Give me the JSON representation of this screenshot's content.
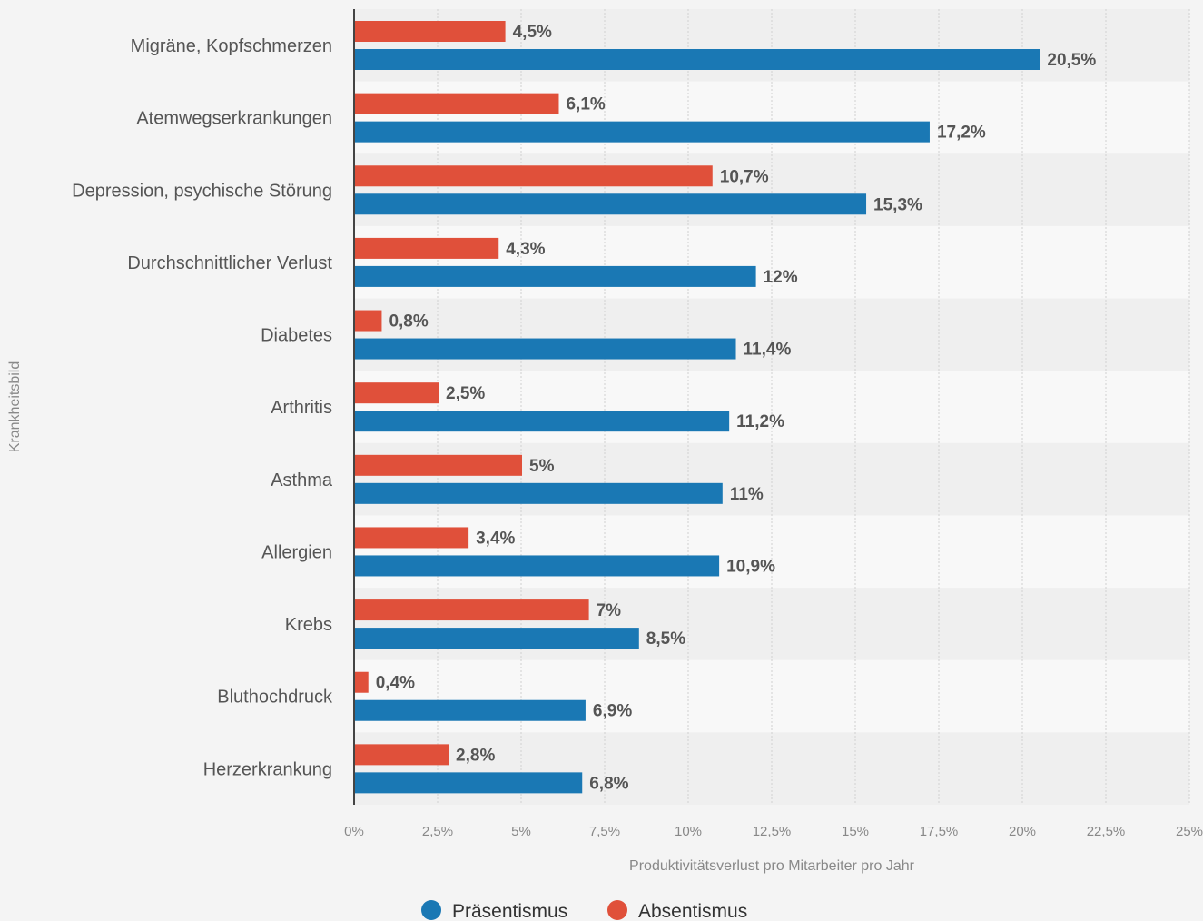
{
  "chart_data": {
    "type": "bar",
    "orientation": "horizontal",
    "categories": [
      "Migräne, Kopfschmerzen",
      "Atemwegserkrankungen",
      "Depression, psychische Störung",
      "Durchschnittlicher Verlust",
      "Diabetes",
      "Arthritis",
      "Asthma",
      "Allergien",
      "Krebs",
      "Bluthochdruck",
      "Herzerkrankung"
    ],
    "series": [
      {
        "name": "Absentismus",
        "color": "#e0503a",
        "values": [
          4.5,
          6.1,
          10.7,
          4.3,
          0.8,
          2.5,
          5,
          3.4,
          7,
          0.4,
          2.8
        ],
        "labels": [
          "4,5%",
          "6,1%",
          "10,7%",
          "4,3%",
          "0,8%",
          "2,5%",
          "5%",
          "3,4%",
          "7%",
          "0,4%",
          "2,8%"
        ]
      },
      {
        "name": "Präsentismus",
        "color": "#1a78b4",
        "values": [
          20.5,
          17.2,
          15.3,
          12,
          11.4,
          11.2,
          11,
          10.9,
          8.5,
          6.9,
          6.8
        ],
        "labels": [
          "20,5%",
          "17,2%",
          "15,3%",
          "12%",
          "11,4%",
          "11,2%",
          "11%",
          "10,9%",
          "8,5%",
          "6,9%",
          "6,8%"
        ]
      }
    ],
    "xlim": [
      0,
      25
    ],
    "xticks": [
      "0%",
      "2,5%",
      "5%",
      "7,5%",
      "10%",
      "12,5%",
      "15%",
      "17,5%",
      "20%",
      "22,5%",
      "25%"
    ],
    "xlabel": "Produktivitätsverlust pro Mitarbeiter pro Jahr",
    "ylabel": "Krankheitsbild",
    "grid": true,
    "legend_position": "bottom",
    "legend": [
      {
        "name": "Präsentismus",
        "color": "#1a78b4"
      },
      {
        "name": "Absentismus",
        "color": "#e0503a"
      }
    ]
  }
}
